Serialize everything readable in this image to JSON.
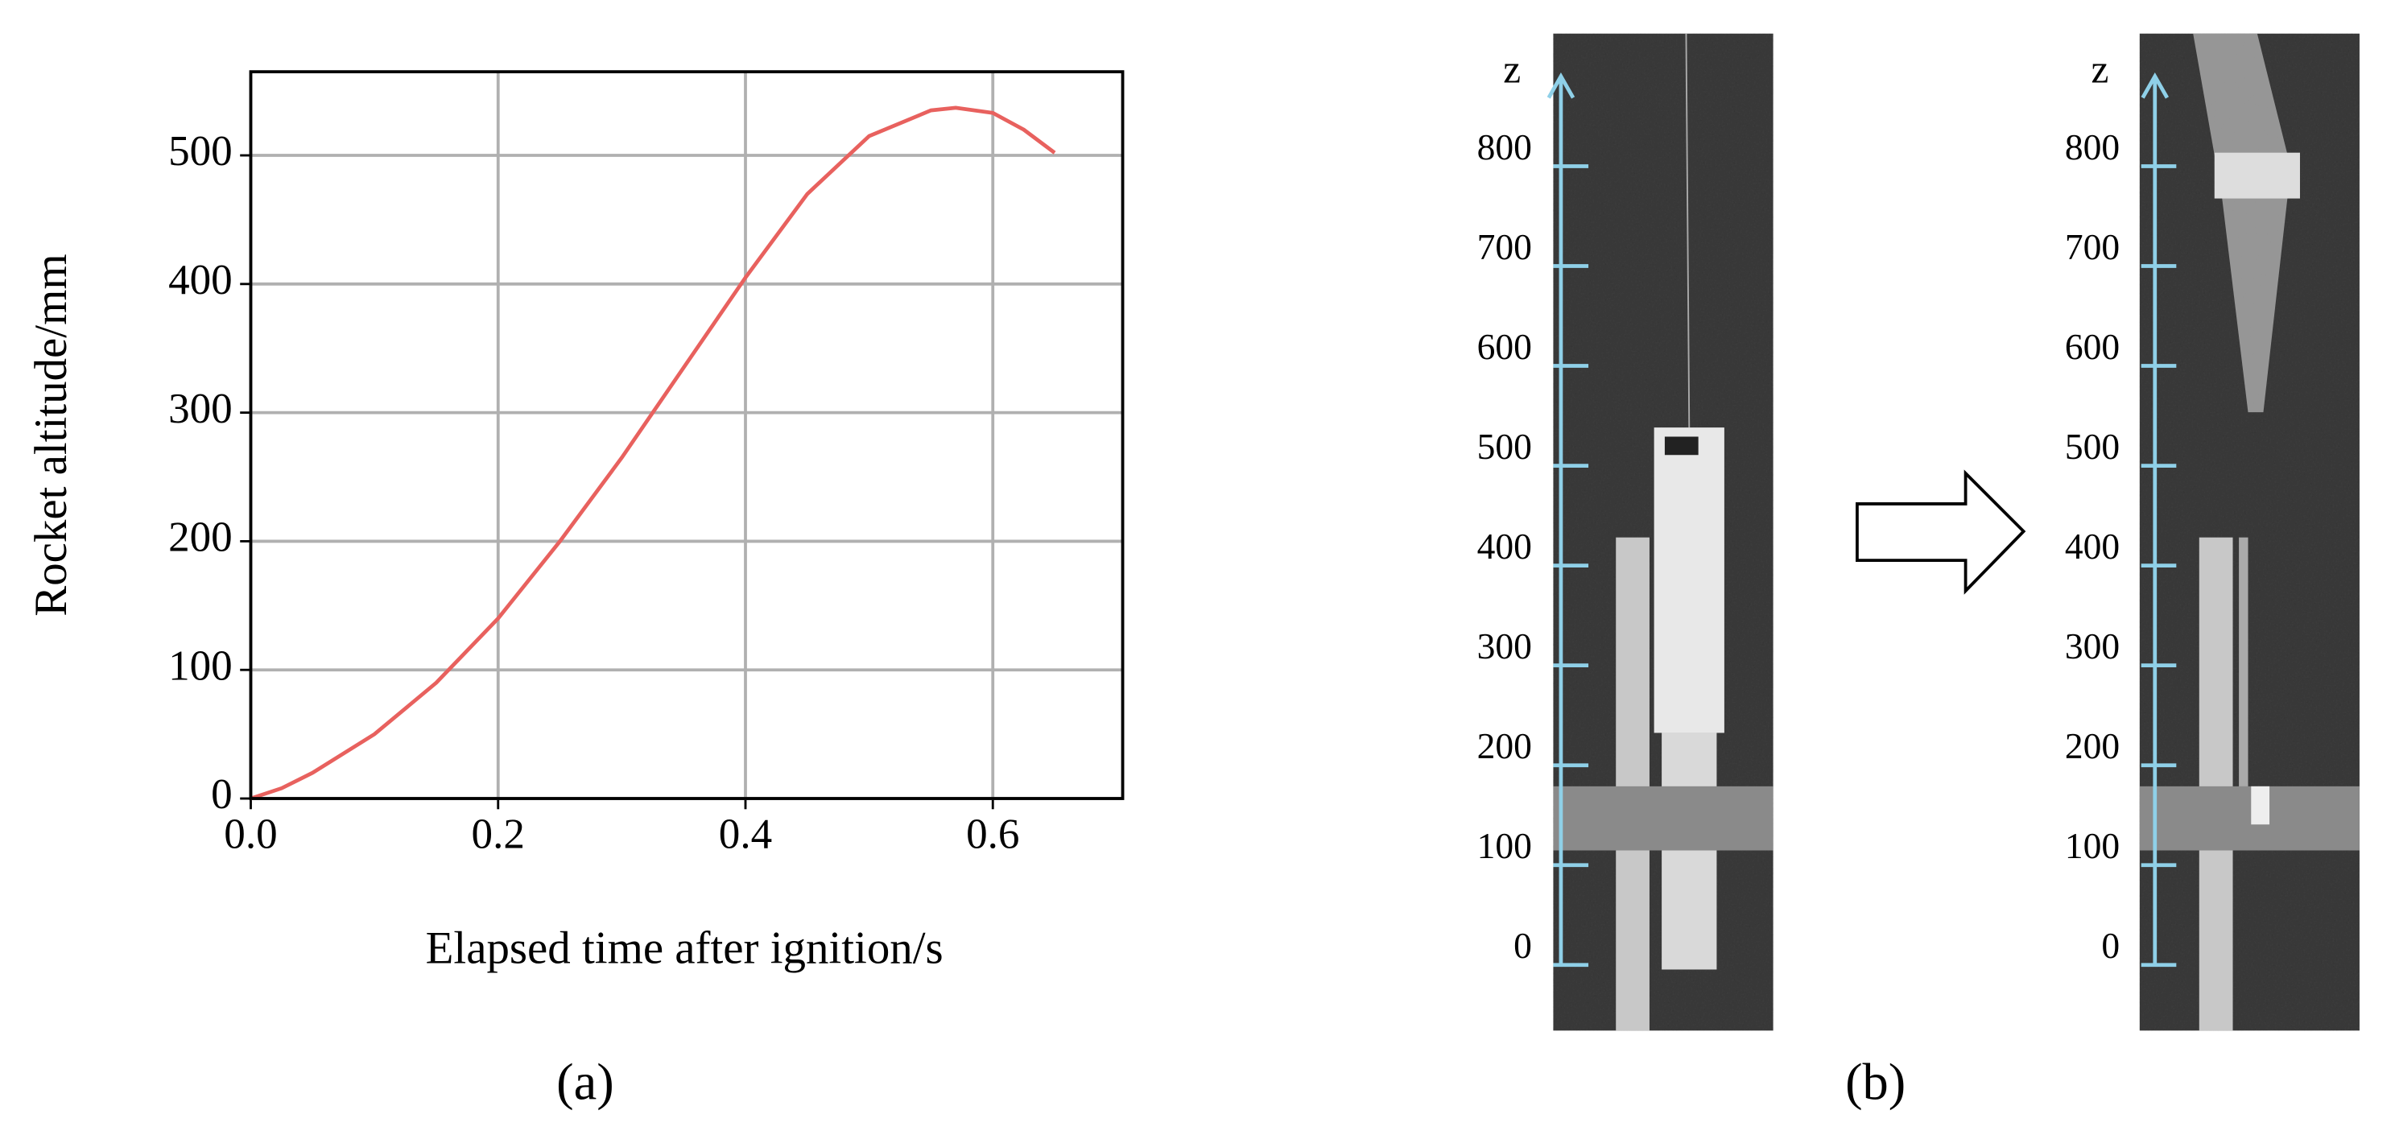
{
  "chart_data": {
    "type": "line",
    "xlabel": "Elapsed time after ignition/s",
    "ylabel": "Rocket altitude/mm",
    "caption": "(a)",
    "x": [
      0,
      0.025,
      0.05,
      0.1,
      0.15,
      0.2,
      0.25,
      0.3,
      0.35,
      0.4,
      0.45,
      0.5,
      0.55,
      0.57,
      0.6,
      0.625,
      0.65
    ],
    "values": [
      0,
      8,
      20,
      50,
      90,
      140,
      200,
      265,
      335,
      405,
      470,
      515,
      535,
      537,
      533,
      520,
      502
    ],
    "color": "#e8615e",
    "grid": true,
    "xlim": [
      0,
      0.705
    ],
    "xticks": [
      {
        "value": 0,
        "label": "0.0"
      },
      {
        "value": 0.2,
        "label": "0.2"
      },
      {
        "value": 0.4,
        "label": "0.4"
      },
      {
        "value": 0.6,
        "label": "0.6"
      }
    ],
    "ylim": [
      0,
      565
    ],
    "yticks": [
      0,
      100,
      200,
      300,
      400,
      500
    ]
  },
  "panel_b": {
    "caption": "(b)",
    "axis_label": "z",
    "ylim": [
      0,
      890
    ],
    "ticks": [
      0,
      100,
      200,
      300,
      400,
      500,
      600,
      700,
      800
    ]
  }
}
